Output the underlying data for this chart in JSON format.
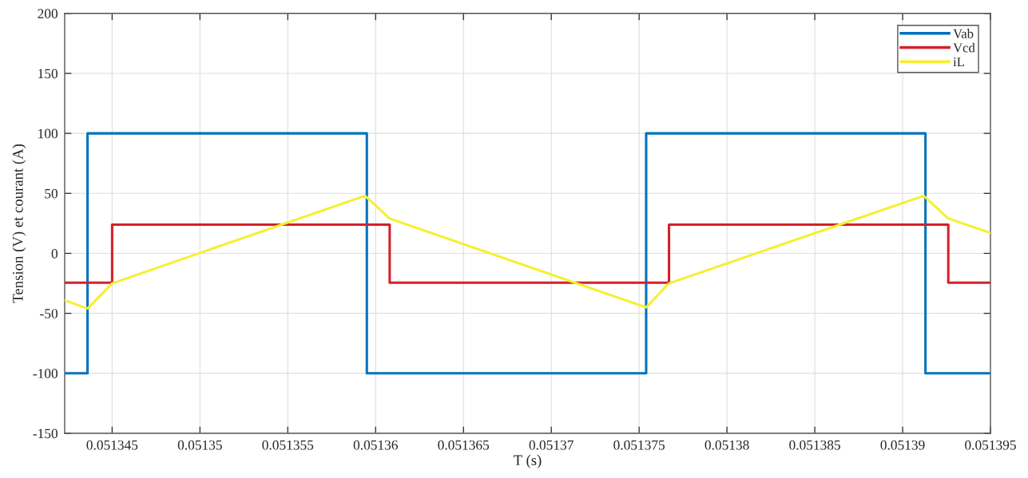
{
  "chart_data": {
    "type": "line",
    "xlabel": "T (s)",
    "ylabel": "Tension (V) et courant (A)",
    "xlim": [
      0.0513423,
      0.051395
    ],
    "xticks": [
      0.051345,
      0.05135,
      0.051355,
      0.05136,
      0.051365,
      0.05137,
      0.051375,
      0.05138,
      0.051385,
      0.05139,
      0.051395
    ],
    "ylim": [
      -150,
      200
    ],
    "yticks": [
      -150,
      -100,
      -50,
      0,
      50,
      100,
      150,
      200
    ],
    "grid": true,
    "legend": "top right",
    "series": [
      {
        "name": "Vab",
        "color": "#0072bd",
        "x": [
          0.0513423,
          0.0513436,
          0.0513436,
          0.0513595,
          0.0513595,
          0.0513754,
          0.0513754,
          0.0513913,
          0.0513913,
          0.051395
        ],
        "values": [
          -100,
          -100,
          100,
          100,
          -100,
          -100,
          100,
          100,
          -100,
          -100
        ]
      },
      {
        "name": "Vcd",
        "color": "#d4202a",
        "x": [
          0.0513423,
          0.051345,
          0.051345,
          0.0513608,
          0.0513608,
          0.0513767,
          0.0513767,
          0.0513926,
          0.0513926,
          0.051395
        ],
        "values": [
          -24.5,
          -24.5,
          24,
          24,
          -24.5,
          -24.5,
          24,
          24,
          -24.5,
          -24.5
        ]
      },
      {
        "name": "iL",
        "color": "#f4f032",
        "x": [
          0.0513423,
          0.0513436,
          0.051345,
          0.0513594,
          0.0513608,
          0.0513754,
          0.0513767,
          0.0513912,
          0.0513926,
          0.051395
        ],
        "values": [
          -39,
          -46,
          -25,
          48,
          29,
          -45,
          -25,
          48,
          29,
          17
        ]
      }
    ]
  }
}
